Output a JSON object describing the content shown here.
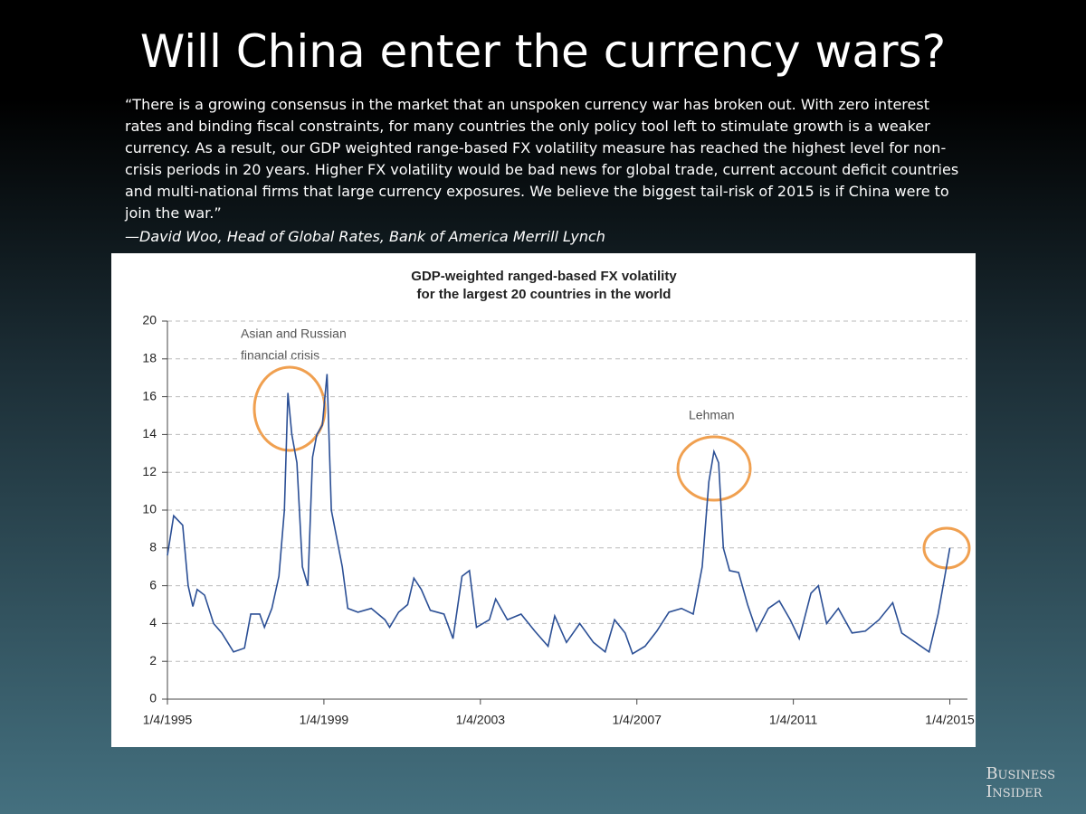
{
  "header": {
    "title": "Will China enter the currency wars?",
    "quote": "“There is a growing consensus in the market that an unspoken currency war has broken out. With zero interest rates and binding fiscal constraints, for many countries the only policy tool left to stimulate growth is a weaker currency. As a result, our GDP weighted range-based FX volatility measure has reached the highest level for non-crisis periods in 20 years. Higher FX volatility would be bad news for global trade, current account deficit countries and multi-national firms that large currency exposures. We believe the biggest tail-risk of 2015 is if China were to join the war.”",
    "attribution": "—David Woo, Head of Global Rates, Bank of America Merrill Lynch"
  },
  "logo": [
    "Business",
    "Insider"
  ],
  "chart_data": {
    "type": "line",
    "title": [
      "GDP-weighted ranged-based FX volatility",
      "for the largest 20 countries in the world"
    ],
    "annotations": [
      "Asian and Russian",
      "financial crisis",
      "Lehman"
    ],
    "color": "#2b4f95",
    "grid": true,
    "x": [
      1995.0,
      1995.16,
      1995.39,
      1995.53,
      1995.65,
      1995.76,
      1995.95,
      1996.18,
      1996.39,
      1996.69,
      1996.97,
      1997.13,
      1997.36,
      1997.48,
      1997.67,
      1997.85,
      1997.99,
      1998.08,
      1998.18,
      1998.31,
      1998.45,
      1998.59,
      1998.71,
      1998.82,
      1998.96,
      1999.08,
      1999.19,
      1999.33,
      1999.47,
      1999.61,
      1999.87,
      2000.21,
      2000.56,
      2000.68,
      2000.91,
      2001.14,
      2001.3,
      2001.49,
      2001.72,
      2002.07,
      2002.3,
      2002.53,
      2002.72,
      2002.9,
      2003.23,
      2003.39,
      2003.69,
      2004.04,
      2004.39,
      2004.73,
      2004.9,
      2005.2,
      2005.54,
      2005.89,
      2006.19,
      2006.43,
      2006.7,
      2006.89,
      2007.21,
      2007.51,
      2007.82,
      2008.14,
      2008.44,
      2008.67,
      2008.84,
      2008.97,
      2009.09,
      2009.21,
      2009.37,
      2009.6,
      2009.83,
      2010.06,
      2010.36,
      2010.64,
      2010.92,
      2011.15,
      2011.45,
      2011.64,
      2011.85,
      2012.15,
      2012.5,
      2012.84,
      2013.19,
      2013.54,
      2013.77,
      2014.12,
      2014.47,
      2014.7,
      2015.0
    ],
    "values": [
      7.6,
      9.7,
      9.2,
      6.0,
      4.9,
      5.8,
      5.5,
      4.0,
      3.5,
      2.5,
      2.7,
      4.5,
      4.5,
      3.8,
      4.8,
      6.5,
      10,
      16.2,
      14,
      12.5,
      7,
      6.0,
      12.8,
      14,
      14.5,
      17.2,
      10,
      8.5,
      7,
      4.8,
      4.6,
      4.8,
      4.2,
      3.8,
      4.6,
      5.0,
      6.4,
      5.8,
      4.7,
      4.5,
      3.2,
      6.5,
      6.8,
      3.8,
      4.2,
      5.3,
      4.2,
      4.5,
      3.6,
      2.8,
      4.4,
      3.0,
      4.0,
      3.0,
      2.5,
      4.2,
      3.5,
      2.4,
      2.8,
      3.6,
      4.6,
      4.8,
      4.5,
      7,
      11.5,
      13.1,
      12.5,
      8,
      6.8,
      6.7,
      5.0,
      3.6,
      4.8,
      5.2,
      4.2,
      3.2,
      5.6,
      6.0,
      4.0,
      4.8,
      3.5,
      3.6,
      4.2,
      5.1,
      3.5,
      3.0,
      2.5,
      4.5,
      8.0
    ],
    "xlim": [
      1995,
      2015.45
    ],
    "xticks": [
      {
        "value": 1995,
        "label": "1/4/1995"
      },
      {
        "value": 1999,
        "label": "1/4/1999"
      },
      {
        "value": 2003,
        "label": "1/4/2003"
      },
      {
        "value": 2007,
        "label": "1/4/2007"
      },
      {
        "value": 2011,
        "label": "1/4/2011"
      },
      {
        "value": 2015,
        "label": "1/4/2015"
      }
    ],
    "ylim": [
      0,
      20
    ],
    "yticks": [
      0,
      2,
      4,
      6,
      8,
      10,
      12,
      14,
      16,
      18,
      20
    ]
  }
}
